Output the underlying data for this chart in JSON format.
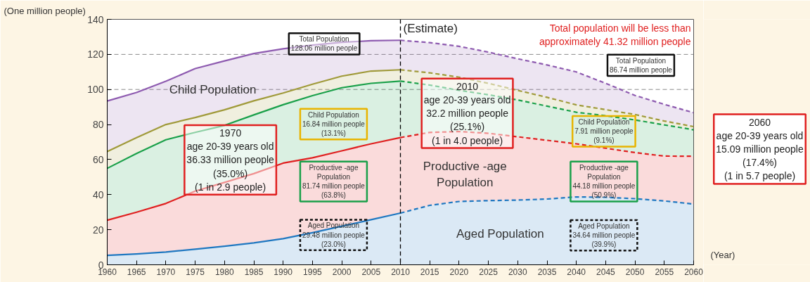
{
  "chart_data": {
    "type": "area",
    "stacked": true,
    "ylabel": "(One million people)",
    "xlabel": "(Year)",
    "x": [
      1960,
      1965,
      1970,
      1975,
      1980,
      1985,
      1990,
      1995,
      2000,
      2005,
      2010,
      2015,
      2020,
      2025,
      2030,
      2035,
      2040,
      2045,
      2050,
      2055,
      2060
    ],
    "series": [
      {
        "color": "#1f78c1",
        "values": [
          5.4,
          6.2,
          7.3,
          8.9,
          10.6,
          12.5,
          14.9,
          18.3,
          22.0,
          25.7,
          29.48,
          33.9,
          36.1,
          36.6,
          36.9,
          37.5,
          38.7,
          38.5,
          37.7,
          36.4,
          34.64
        ]
      },
      {
        "color": "#e02020",
        "values": [
          20.0,
          23.8,
          27.67,
          33.1,
          36.4,
          39.5,
          43.1,
          42.7,
          43.0,
          43.3,
          43.1,
          41.6,
          39.9,
          38.4,
          36.1,
          33.5,
          30.3,
          28.0,
          26.3,
          25.6,
          27.27
        ]
      },
      {
        "color": "#1aa04a",
        "values": [
          29.6,
          33.5,
          36.33,
          33.5,
          32.5,
          33.5,
          33.3,
          35.5,
          36.0,
          34.5,
          32.2,
          27.0,
          23.5,
          22.0,
          21.0,
          19.5,
          18.0,
          18.5,
          18.6,
          17.8,
          15.09
        ]
      },
      {
        "color": "#a09a3a",
        "values": [
          9.6,
          9.0,
          8.7,
          8.5,
          8.9,
          8.0,
          6.7,
          6.5,
          6.6,
          7.0,
          6.44,
          7.0,
          7.5,
          6.5,
          5.5,
          5.0,
          4.2,
          3.5,
          3.1,
          2.2,
          1.82
        ]
      },
      {
        "color": "#8e5bb0",
        "values": [
          28.8,
          25.8,
          24.7,
          27.9,
          27.9,
          27.0,
          25.2,
          22.3,
          19.3,
          17.3,
          16.84,
          17.2,
          17.6,
          17.8,
          18.0,
          18.5,
          18.8,
          15.0,
          10.9,
          9.5,
          7.91
        ]
      }
    ],
    "xlim": [
      1960,
      2060
    ],
    "ylim": [
      0,
      140
    ],
    "xticks": [
      1960,
      1965,
      1970,
      1975,
      1980,
      1985,
      1990,
      1995,
      2000,
      2005,
      2010,
      2015,
      2020,
      2025,
      2030,
      2035,
      2040,
      2045,
      2050,
      2055,
      2060
    ],
    "yticks": [
      0,
      20,
      40,
      60,
      80,
      100,
      120,
      140
    ],
    "ref_lines": [
      {
        "axis": "y",
        "value": 100,
        "color": "#888888",
        "line_style": "dashed"
      },
      {
        "axis": "y",
        "value": 120,
        "color": "#888888",
        "line_style": "dashed"
      },
      {
        "axis": "x",
        "value": 2010,
        "label": "(Estimate)",
        "color": "#000000",
        "line_style": "dashed"
      }
    ],
    "annotations": [
      "Child Population",
      "Productive -age\nPopulation",
      "Aged Population",
      "Total Population\n128.06 million people",
      "Total Population\n86.74 million people",
      "Total population will be less than\napproximately 41.32 million people",
      "Child Population\n16.84 million people\n(13.1%)",
      "Productive -age\nPopulation\n81.74 million people\n(63.8%)",
      "Aged Population\n29.48 million people\n(23.0%)",
      "1970\nage 20-39 years old\n36.33 million people\n(35.0%)\n(1 in 2.9 people)",
      "2010\nage 20-39 years old\n32.2 million people\n(25.1%)\n(1 in 4.0 people)",
      "2060\nage 20-39 years old\n15.09 million people\n(17.4%)\n(1 in 5.7 people)",
      "Child Population\n7.91 million people\n(9.1%)",
      "Productive -age\nPopulation\n44.18 million people\n(50.9%)",
      "Aged Population\n34.64 million people\n(39.9%)"
    ],
    "grid": false
  }
}
